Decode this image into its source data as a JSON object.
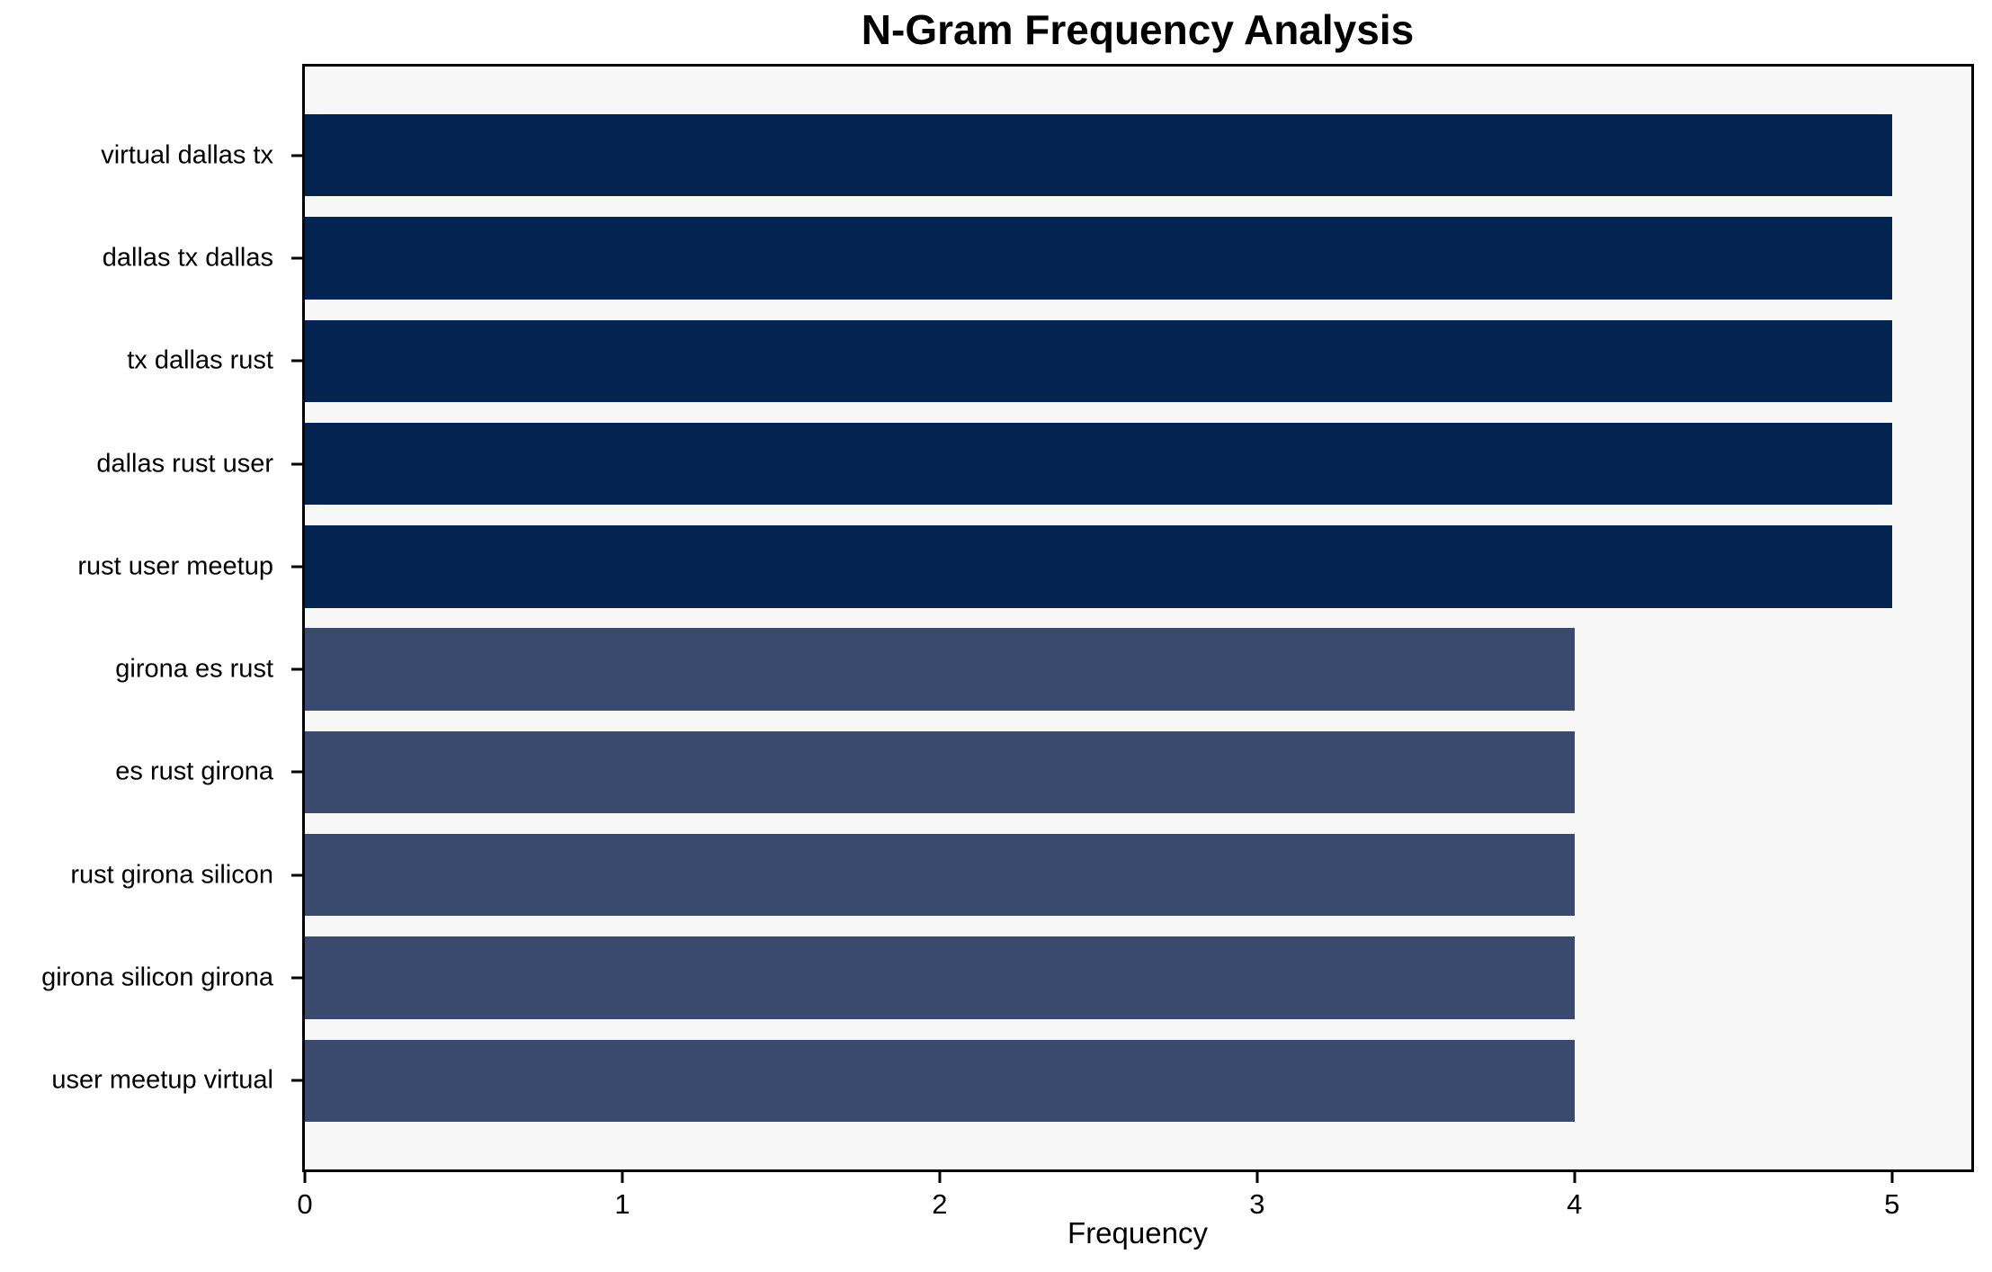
{
  "chart_data": {
    "type": "bar",
    "orientation": "horizontal",
    "title": "N-Gram Frequency Analysis",
    "xlabel": "Frequency",
    "ylabel": "",
    "categories": [
      "virtual dallas tx",
      "dallas tx dallas",
      "tx dallas rust",
      "dallas rust user",
      "rust user meetup",
      "girona es rust",
      "es rust girona",
      "rust girona silicon",
      "girona silicon girona",
      "user meetup virtual"
    ],
    "values": [
      5,
      5,
      5,
      5,
      5,
      4,
      4,
      4,
      4,
      4
    ],
    "bar_colors": [
      "#032450",
      "#032450",
      "#032450",
      "#032450",
      "#032450",
      "#3a4a6f",
      "#3a4a6f",
      "#3a4a6f",
      "#3a4a6f",
      "#3a4a6f"
    ],
    "xlim": [
      0,
      5.25
    ],
    "xticks": [
      0,
      1,
      2,
      3,
      4,
      5
    ],
    "grid": false,
    "legend": "none",
    "plot_background": "#f7f7f7",
    "frame_color": "#000000"
  }
}
